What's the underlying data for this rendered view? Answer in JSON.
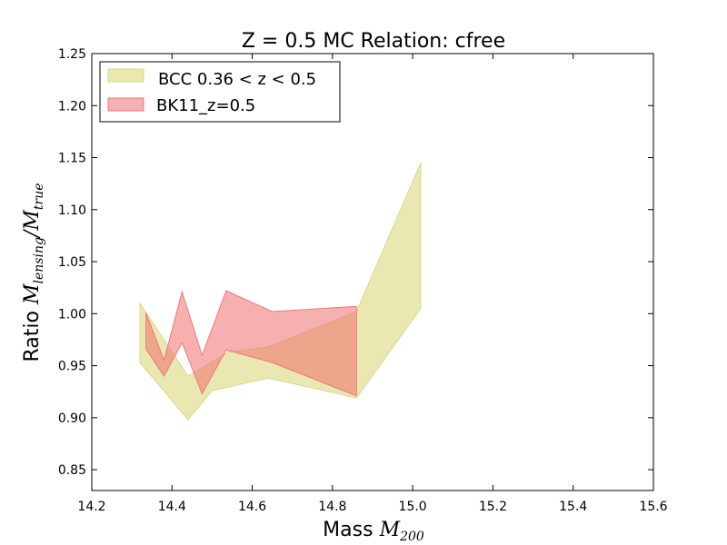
{
  "chart_data": {
    "type": "area",
    "title": "Z = 0.5 MC Relation: cfree",
    "xlabel": {
      "text": "Mass ",
      "symbol": "M",
      "sub": "200"
    },
    "ylabel": {
      "text": "Ratio ",
      "symbol1": "M",
      "sub1": "lensing",
      "slash": "/",
      "symbol2": "M",
      "sub2": "true"
    },
    "xlim": [
      14.2,
      15.6
    ],
    "ylim": [
      0.83,
      1.25
    ],
    "xticks": [
      "14.2",
      "14.4",
      "14.6",
      "14.8",
      "15.0",
      "15.2",
      "15.4",
      "15.6"
    ],
    "yticks": [
      "0.85",
      "0.90",
      "0.95",
      "1.00",
      "1.05",
      "1.10",
      "1.15",
      "1.20",
      "1.25"
    ],
    "grid": false,
    "legend_position": "top-left",
    "series": [
      {
        "name": "BCC 0.36 < z < 0.5",
        "fill": "#e8e8b0",
        "stroke": "#d8d890",
        "upper": [
          [
            14.32,
            1.01
          ],
          [
            14.44,
            0.94
          ],
          [
            14.54,
            0.963
          ],
          [
            14.64,
            0.968
          ],
          [
            14.86,
            1.002
          ],
          [
            15.02,
            1.145
          ]
        ],
        "lower": [
          [
            14.32,
            0.953
          ],
          [
            14.44,
            0.898
          ],
          [
            14.5,
            0.926
          ],
          [
            14.64,
            0.938
          ],
          [
            14.86,
            0.919
          ],
          [
            15.02,
            1.005
          ]
        ]
      },
      {
        "name": "BK11_z=0.5",
        "fill": "#f07070",
        "stroke": "#f07878",
        "opacity": 0.55,
        "upper": [
          [
            14.335,
            1.001
          ],
          [
            14.38,
            0.955
          ],
          [
            14.425,
            1.021
          ],
          [
            14.475,
            0.96
          ],
          [
            14.535,
            1.022
          ],
          [
            14.65,
            1.002
          ],
          [
            14.86,
            1.007
          ]
        ],
        "lower": [
          [
            14.335,
            0.966
          ],
          [
            14.38,
            0.94
          ],
          [
            14.425,
            0.972
          ],
          [
            14.475,
            0.923
          ],
          [
            14.535,
            0.965
          ],
          [
            14.65,
            0.953
          ],
          [
            14.86,
            0.921
          ]
        ]
      }
    ]
  }
}
